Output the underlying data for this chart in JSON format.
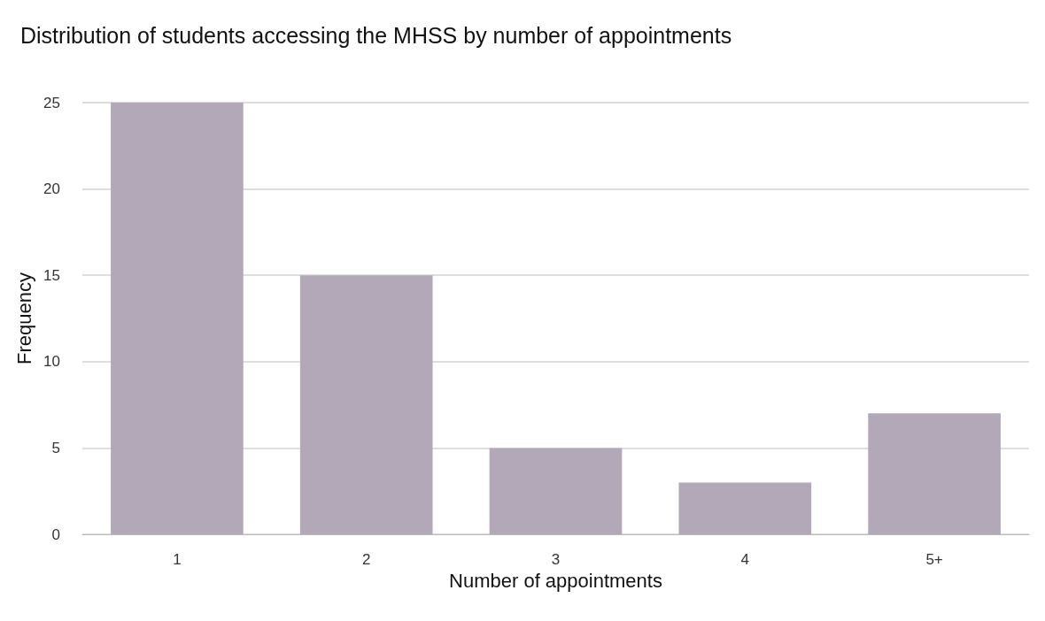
{
  "chart_data": {
    "type": "bar",
    "title": "Distribution of students accessing the MHSS by number of appointments",
    "xlabel": "Number of appointments",
    "ylabel": "Frequency",
    "categories": [
      "1",
      "2",
      "3",
      "4",
      "5+"
    ],
    "values": [
      25,
      15,
      5,
      3,
      7
    ],
    "color": "#b3a8b8",
    "ylim": [
      0,
      25
    ],
    "yticks": [
      0,
      5,
      10,
      15,
      20,
      25
    ],
    "grid": "y"
  }
}
